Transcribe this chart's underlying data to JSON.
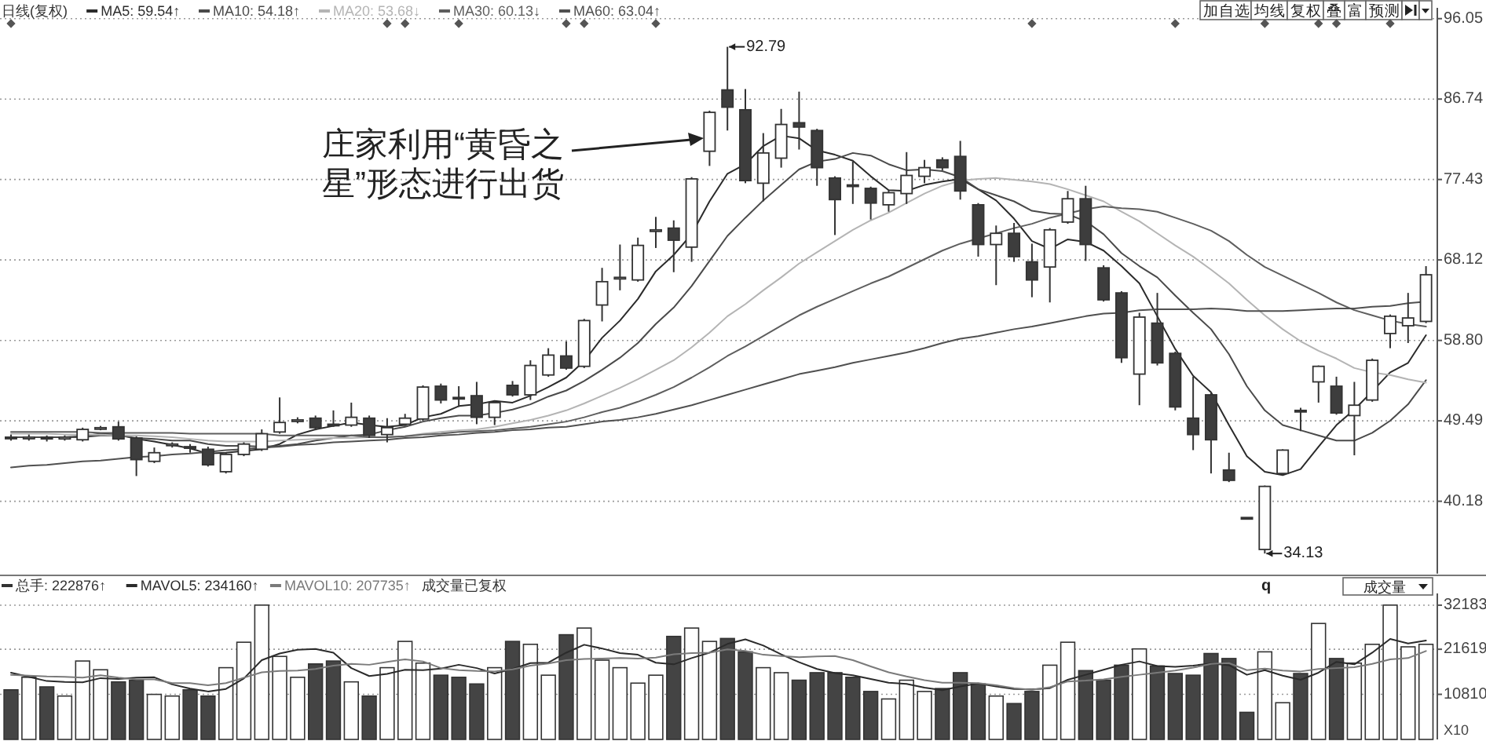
{
  "chart_data": [
    {
      "type": "candlestick",
      "title": "日线(复权)",
      "legend": "top left",
      "grid": "y",
      "categories": [
        null,
        null,
        null,
        null,
        null,
        null,
        null,
        null,
        null,
        null,
        null,
        null,
        null,
        null,
        null,
        null,
        null,
        null,
        null,
        null,
        null,
        null,
        null,
        null,
        null,
        null,
        null,
        null,
        null,
        null,
        null,
        null,
        null,
        null,
        null,
        null,
        null,
        null,
        null,
        null,
        null,
        null,
        null,
        null,
        null,
        null,
        null,
        null,
        null,
        null,
        null,
        null,
        null,
        null,
        null,
        null,
        null,
        null,
        null,
        null,
        null,
        null,
        null,
        null,
        null,
        null,
        null,
        null,
        null,
        null,
        null,
        null,
        null,
        null,
        null,
        null,
        null,
        null,
        null,
        null
      ],
      "ohlc": [
        [
          47.6,
          47.9,
          47.2,
          47.5
        ],
        [
          47.5,
          47.9,
          47.2,
          47.6
        ],
        [
          47.6,
          47.8,
          47.1,
          47.4
        ],
        [
          47.4,
          47.8,
          47.2,
          47.6
        ],
        [
          47.3,
          48.7,
          47.1,
          48.5
        ],
        [
          48.6,
          48.9,
          48.4,
          48.7
        ],
        [
          48.8,
          49.4,
          47.2,
          47.4
        ],
        [
          47.5,
          47.7,
          43.1,
          45.0
        ],
        [
          44.8,
          46.4,
          44.6,
          45.8
        ],
        [
          46.7,
          47.0,
          46.4,
          46.8
        ],
        [
          46.5,
          46.8,
          45.8,
          46.4
        ],
        [
          46.2,
          46.5,
          44.2,
          44.4
        ],
        [
          43.6,
          45.8,
          43.4,
          45.6
        ],
        [
          45.6,
          47.0,
          45.4,
          46.8
        ],
        [
          46.2,
          48.5,
          46.0,
          48.0
        ],
        [
          48.2,
          52.2,
          48.0,
          49.3
        ],
        [
          49.5,
          49.9,
          49.2,
          49.6
        ],
        [
          49.8,
          50.1,
          48.4,
          48.7
        ],
        [
          49.1,
          50.7,
          48.8,
          49.0
        ],
        [
          49.0,
          51.6,
          48.8,
          49.9
        ],
        [
          49.8,
          50.1,
          47.5,
          47.8
        ],
        [
          47.9,
          49.8,
          47.0,
          48.7
        ],
        [
          49.1,
          50.3,
          48.9,
          49.8
        ],
        [
          49.7,
          53.6,
          49.5,
          53.4
        ],
        [
          53.5,
          53.8,
          51.5,
          51.9
        ],
        [
          52.2,
          53.5,
          51.1,
          52.1
        ],
        [
          52.4,
          54.0,
          49.1,
          49.9
        ],
        [
          49.9,
          51.8,
          49.0,
          51.6
        ],
        [
          53.6,
          54.1,
          52.3,
          52.5
        ],
        [
          52.5,
          56.5,
          51.9,
          55.9
        ],
        [
          54.8,
          57.9,
          54.6,
          57.1
        ],
        [
          57.0,
          58.7,
          55.4,
          55.6
        ],
        [
          55.8,
          61.3,
          55.6,
          61.1
        ],
        [
          62.9,
          67.2,
          61.0,
          65.6
        ],
        [
          66.0,
          69.9,
          64.6,
          66.1
        ],
        [
          65.8,
          70.7,
          65.6,
          69.8
        ],
        [
          71.5,
          73.1,
          69.5,
          71.6
        ],
        [
          71.8,
          72.7,
          66.7,
          70.4
        ],
        [
          69.6,
          77.7,
          67.9,
          77.5
        ],
        [
          80.7,
          85.4,
          79.0,
          85.2
        ],
        [
          87.8,
          92.79,
          83.1,
          85.8
        ],
        [
          85.5,
          87.9,
          77.0,
          77.3
        ],
        [
          77.0,
          82.8,
          74.9,
          80.5
        ],
        [
          79.9,
          85.6,
          78.8,
          83.8
        ],
        [
          84.0,
          87.6,
          80.9,
          83.5
        ],
        [
          83.1,
          83.3,
          76.7,
          78.8
        ],
        [
          77.6,
          77.8,
          71.0,
          75.1
        ],
        [
          76.8,
          79.5,
          74.6,
          76.7
        ],
        [
          76.4,
          76.6,
          72.8,
          74.7
        ],
        [
          74.5,
          76.2,
          73.7,
          75.9
        ],
        [
          75.8,
          80.6,
          74.6,
          77.9
        ],
        [
          77.8,
          79.7,
          77.0,
          78.8
        ],
        [
          79.7,
          80.0,
          78.5,
          78.8
        ],
        [
          80.1,
          81.9,
          75.1,
          76.1
        ],
        [
          74.5,
          74.7,
          68.5,
          69.9
        ],
        [
          69.9,
          72.1,
          65.2,
          71.2
        ],
        [
          71.2,
          72.4,
          67.9,
          68.5
        ],
        [
          67.9,
          70.0,
          63.8,
          65.8
        ],
        [
          67.3,
          71.8,
          63.2,
          71.6
        ],
        [
          72.5,
          76.1,
          72.3,
          75.2
        ],
        [
          75.2,
          76.7,
          68.0,
          69.9
        ],
        [
          67.2,
          67.5,
          63.3,
          63.5
        ],
        [
          64.3,
          64.5,
          56.2,
          56.8
        ],
        [
          54.9,
          62.0,
          51.3,
          61.5
        ],
        [
          60.8,
          64.3,
          55.9,
          56.2
        ],
        [
          57.3,
          57.5,
          50.7,
          51.1
        ],
        [
          49.8,
          54.6,
          46.1,
          47.9
        ],
        [
          52.5,
          52.7,
          43.4,
          47.3
        ],
        [
          43.8,
          45.8,
          42.4,
          42.6
        ],
        [
          38.3,
          38.3,
          38.2,
          38.2
        ],
        [
          34.6,
          42.0,
          34.13,
          41.9
        ],
        [
          43.4,
          46.2,
          43.2,
          46.1
        ],
        [
          50.7,
          51.0,
          48.3,
          50.6
        ],
        [
          54.0,
          55.9,
          51.6,
          55.8
        ],
        [
          53.5,
          54.6,
          50.2,
          50.4
        ],
        [
          50.1,
          54.0,
          45.5,
          51.3
        ],
        [
          51.9,
          56.7,
          51.7,
          56.5
        ],
        [
          59.6,
          61.8,
          57.9,
          61.6
        ],
        [
          60.5,
          64.3,
          58.5,
          61.4
        ],
        [
          61.0,
          67.4,
          60.8,
          66.4
        ]
      ],
      "series": [
        {
          "name": "MA5: 59.54↑",
          "type": "line",
          "color": "#2b2b2b",
          "values": [
            47.6,
            47.6,
            47.6,
            47.6,
            47.7,
            48.0,
            47.9,
            47.4,
            47.1,
            46.7,
            46.3,
            45.7,
            45.8,
            46.0,
            46.2,
            46.8,
            47.9,
            48.5,
            48.9,
            49.3,
            49.0,
            48.8,
            49.0,
            49.9,
            50.3,
            51.2,
            51.4,
            51.8,
            51.6,
            52.4,
            53.4,
            54.5,
            56.4,
            59.1,
            61.1,
            63.6,
            66.8,
            68.7,
            71.1,
            74.9,
            78.1,
            79.2,
            81.3,
            82.5,
            82.2,
            80.8,
            80.3,
            79.6,
            77.8,
            76.2,
            76.1,
            76.8,
            77.2,
            77.5,
            76.3,
            75.0,
            72.9,
            70.3,
            69.4,
            70.5,
            70.2,
            69.2,
            67.4,
            65.4,
            61.6,
            57.8,
            54.7,
            52.8,
            49.0,
            45.4,
            43.6,
            43.2,
            43.9,
            46.5,
            49.0,
            50.8,
            52.9,
            55.1,
            56.2,
            59.4
          ]
        },
        {
          "name": "MA10: 54.18↑",
          "type": "line",
          "color": "#4a4a4a",
          "values": [
            47.6,
            47.6,
            47.6,
            47.6,
            47.6,
            47.8,
            47.8,
            47.5,
            47.4,
            47.2,
            47.2,
            46.8,
            46.6,
            46.6,
            46.5,
            46.6,
            46.8,
            47.2,
            47.5,
            47.8,
            47.9,
            48.4,
            48.8,
            49.4,
            49.8,
            50.1,
            50.1,
            50.4,
            50.8,
            51.4,
            52.3,
            53.0,
            54.1,
            55.4,
            56.8,
            58.5,
            60.7,
            62.6,
            65.1,
            68.0,
            70.9,
            73.0,
            75.0,
            76.8,
            78.6,
            79.5,
            79.8,
            80.5,
            80.2,
            79.2,
            78.5,
            78.6,
            78.4,
            77.7,
            76.3,
            75.6,
            74.9,
            73.8,
            73.5,
            73.4,
            72.6,
            71.1,
            68.9,
            67.4,
            66.1,
            64.0,
            62.0,
            60.1,
            57.2,
            53.5,
            50.7,
            49.0,
            48.4,
            47.8,
            47.2,
            47.2,
            48.1,
            49.5,
            51.4,
            54.2
          ]
        },
        {
          "name": "MA20: 53.68↓",
          "type": "line",
          "color": "#b4b4b4",
          "values": [
            48.0,
            48.0,
            48.0,
            47.9,
            47.9,
            47.9,
            47.8,
            47.8,
            47.7,
            47.6,
            47.4,
            47.2,
            47.1,
            47.1,
            47.1,
            47.2,
            47.3,
            47.4,
            47.5,
            47.5,
            47.6,
            47.6,
            47.7,
            48.0,
            48.2,
            48.4,
            48.5,
            48.8,
            49.2,
            49.6,
            50.1,
            50.7,
            51.5,
            52.4,
            53.3,
            54.3,
            55.4,
            56.5,
            58.0,
            59.7,
            61.6,
            63.0,
            64.6,
            66.1,
            67.7,
            69.0,
            70.3,
            71.6,
            72.7,
            73.6,
            74.7,
            75.8,
            76.7,
            77.3,
            77.5,
            77.6,
            77.4,
            77.2,
            76.9,
            76.3,
            75.6,
            74.9,
            73.7,
            72.6,
            71.2,
            69.8,
            68.5,
            67.0,
            65.4,
            63.5,
            61.7,
            60.1,
            58.7,
            57.6,
            56.7,
            55.6,
            55.1,
            54.8,
            54.3,
            53.9
          ]
        },
        {
          "name": "MA30: 60.13↓",
          "type": "line",
          "color": "#5e5e5e",
          "values": [
            48.2,
            48.2,
            48.2,
            48.2,
            48.2,
            48.1,
            48.1,
            48.1,
            48.1,
            48.1,
            48.0,
            48.0,
            48.0,
            48.0,
            48.0,
            47.8,
            47.8,
            47.8,
            47.8,
            47.8,
            47.6,
            47.6,
            47.7,
            47.9,
            48.0,
            48.2,
            48.3,
            48.4,
            48.6,
            48.8,
            49.1,
            49.4,
            49.9,
            50.5,
            51.0,
            51.7,
            52.5,
            53.4,
            54.5,
            55.7,
            57.0,
            58.1,
            59.3,
            60.5,
            61.7,
            62.7,
            63.6,
            64.5,
            65.4,
            66.2,
            67.2,
            68.2,
            69.2,
            70.0,
            70.6,
            71.2,
            71.8,
            72.3,
            73.0,
            73.5,
            74.0,
            74.3,
            74.1,
            74.0,
            73.7,
            73.0,
            72.3,
            71.5,
            70.3,
            68.7,
            67.3,
            66.3,
            65.3,
            64.3,
            63.2,
            62.3,
            61.7,
            61.1,
            60.7,
            60.4
          ]
        },
        {
          "name": "MA60: 63.04↑",
          "type": "line",
          "color": "#505050",
          "values": [
            44.1,
            44.3,
            44.4,
            44.6,
            44.8,
            44.9,
            45.1,
            45.3,
            45.4,
            45.6,
            45.7,
            45.9,
            46.1,
            46.2,
            46.4,
            46.5,
            46.7,
            46.8,
            47.0,
            47.1,
            47.2,
            47.3,
            47.5,
            47.6,
            47.8,
            47.9,
            48.1,
            48.2,
            48.4,
            48.5,
            48.7,
            48.8,
            49.1,
            49.4,
            49.6,
            49.9,
            50.3,
            50.8,
            51.3,
            51.9,
            52.5,
            53.1,
            53.7,
            54.3,
            54.9,
            55.3,
            55.7,
            56.2,
            56.6,
            57.0,
            57.4,
            57.9,
            58.5,
            59.0,
            59.3,
            59.7,
            60.1,
            60.4,
            60.8,
            61.2,
            61.6,
            61.9,
            62.0,
            62.3,
            62.4,
            62.4,
            62.4,
            62.5,
            62.4,
            62.2,
            62.2,
            62.2,
            62.3,
            62.4,
            62.5,
            62.5,
            62.7,
            62.8,
            63.1,
            63.3
          ]
        }
      ],
      "ylim": [
        31.8,
        97.3
      ],
      "yticks": [
        {
          "value": 40.18,
          "label": "40.18"
        },
        {
          "value": 49.49,
          "label": "49.49"
        },
        {
          "value": 58.8,
          "label": "58.80"
        },
        {
          "value": 68.12,
          "label": "68.12"
        },
        {
          "value": 77.43,
          "label": "77.43"
        },
        {
          "value": 86.74,
          "label": "86.74"
        },
        {
          "value": 96.05,
          "label": "96.05"
        }
      ],
      "annotations": [
        "庄家利用“黄昏之星”形态进行出货",
        "92.79",
        "34.13",
        "q",
        "加自选",
        "均线",
        "复权",
        "叠",
        "富",
        "预测"
      ]
    },
    {
      "type": "bar",
      "legend": "top left",
      "grid": "y",
      "ylabel": "X10",
      "categories": [
        null,
        null,
        null,
        null,
        null,
        null,
        null,
        null,
        null,
        null,
        null,
        null,
        null,
        null,
        null,
        null,
        null,
        null,
        null,
        null,
        null,
        null,
        null,
        null,
        null,
        null,
        null,
        null,
        null,
        null,
        null,
        null,
        null,
        null,
        null,
        null,
        null,
        null,
        null,
        null,
        null,
        null,
        null,
        null,
        null,
        null,
        null,
        null,
        null,
        null,
        null,
        null,
        null,
        null,
        null,
        null,
        null,
        null,
        null,
        null,
        null,
        null,
        null,
        null,
        null,
        null,
        null,
        null,
        null,
        null,
        null,
        null,
        null,
        null,
        null,
        null,
        null,
        null,
        null,
        null
      ],
      "series": [
        {
          "name": "总手: 222876↑",
          "color": "#333333",
          "values": [
            11900,
            14900,
            12600,
            10400,
            18800,
            16700,
            13800,
            14200,
            10800,
            10400,
            11900,
            10400,
            17200,
            23300,
            32200,
            19900,
            14900,
            18100,
            18800,
            13800,
            10400,
            17200,
            23500,
            18300,
            15400,
            14900,
            13300,
            17200,
            23500,
            22800,
            15400,
            25100,
            26700,
            19000,
            17200,
            13500,
            15400,
            24700,
            26700,
            23500,
            24200,
            21000,
            17200,
            16000,
            14200,
            16000,
            16000,
            14900,
            11500,
            9700,
            14200,
            11500,
            12200,
            16000,
            13300,
            10400,
            8600,
            11500,
            17800,
            23300,
            16500,
            14200,
            17800,
            21700,
            17600,
            15800,
            15400,
            20600,
            19400,
            6500,
            21000,
            8800,
            15800,
            27800,
            19400,
            18300,
            22800,
            32200,
            22200,
            22800
          ],
          "colors": [
            "#444444",
            "#ffffff",
            "#444444",
            "#ffffff",
            "#ffffff",
            "#ffffff",
            "#444444",
            "#444444",
            "#ffffff",
            "#ffffff",
            "#444444",
            "#444444",
            "#ffffff",
            "#ffffff",
            "#ffffff",
            "#ffffff",
            "#ffffff",
            "#444444",
            "#444444",
            "#ffffff",
            "#444444",
            "#ffffff",
            "#ffffff",
            "#ffffff",
            "#444444",
            "#444444",
            "#444444",
            "#ffffff",
            "#444444",
            "#ffffff",
            "#ffffff",
            "#444444",
            "#ffffff",
            "#ffffff",
            "#ffffff",
            "#ffffff",
            "#ffffff",
            "#444444",
            "#ffffff",
            "#ffffff",
            "#444444",
            "#444444",
            "#ffffff",
            "#ffffff",
            "#444444",
            "#444444",
            "#444444",
            "#444444",
            "#444444",
            "#ffffff",
            "#ffffff",
            "#ffffff",
            "#444444",
            "#444444",
            "#444444",
            "#ffffff",
            "#444444",
            "#444444",
            "#ffffff",
            "#ffffff",
            "#444444",
            "#444444",
            "#444444",
            "#ffffff",
            "#444444",
            "#444444",
            "#444444",
            "#444444",
            "#444444",
            "#444444",
            "#ffffff",
            "#ffffff",
            "#444444",
            "#ffffff",
            "#444444",
            "#ffffff",
            "#ffffff",
            "#ffffff",
            "#ffffff",
            "#ffffff"
          ]
        },
        {
          "name": "MAVOL5: 234160↑",
          "type": "line",
          "color": "#2b2b2b",
          "values": [
            16000,
            15000,
            14000,
            13800,
            13700,
            14700,
            14500,
            14800,
            14900,
            13200,
            12200,
            11500,
            12100,
            14600,
            19000,
            20600,
            21500,
            21700,
            20800,
            17100,
            15200,
            15700,
            16700,
            16600,
            17000,
            17900,
            17100,
            15800,
            16900,
            18300,
            18400,
            20800,
            22700,
            21800,
            20700,
            20300,
            18400,
            18000,
            19500,
            20800,
            22900,
            24000,
            22500,
            20400,
            18500,
            16900,
            15900,
            15400,
            14500,
            13600,
            13300,
            12400,
            11800,
            12700,
            13400,
            12700,
            12100,
            12000,
            12300,
            14300,
            15500,
            16700,
            17900,
            18700,
            17600,
            17400,
            17700,
            18200,
            17800,
            15500,
            16600,
            15300,
            14300,
            16000,
            18600,
            18000,
            20800,
            24100,
            23000,
            23700
          ]
        },
        {
          "name": "MAVOL10: 207735↑",
          "type": "line",
          "color": "#7a7a7a",
          "values": [
            15500,
            15300,
            15100,
            15000,
            14800,
            15400,
            14800,
            14400,
            14400,
            13500,
            13500,
            13000,
            13500,
            14800,
            16100,
            16400,
            16500,
            16900,
            17700,
            18100,
            17900,
            18600,
            19200,
            18700,
            17100,
            16600,
            16400,
            16300,
            16800,
            17700,
            18200,
            19000,
            19300,
            19400,
            19500,
            19400,
            19600,
            20400,
            20700,
            20800,
            21600,
            21200,
            20300,
            20000,
            19700,
            19900,
            20000,
            19000,
            17500,
            16100,
            15100,
            14200,
            13600,
            13600,
            13500,
            13000,
            12300,
            11900,
            12500,
            13900,
            14100,
            14400,
            15000,
            15500,
            16000,
            16500,
            17200,
            18100,
            18300,
            16600,
            17000,
            16500,
            16300,
            16900,
            17100,
            17300,
            18100,
            19200,
            19500,
            21200
          ]
        }
      ],
      "ylim": [
        0,
        35000
      ],
      "yticks": [
        10810,
        21619,
        32183
      ],
      "annotations": [
        "成交量已复权",
        "成交量"
      ]
    }
  ]
}
